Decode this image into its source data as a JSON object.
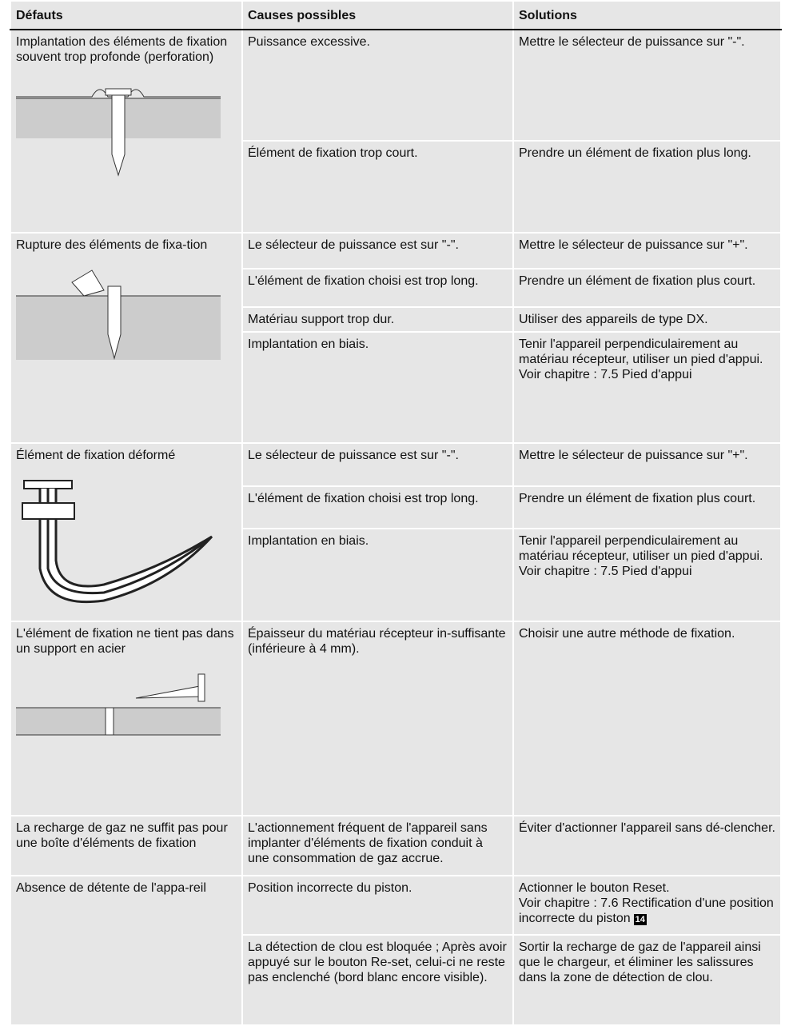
{
  "table": {
    "header": [
      "Défauts",
      "Causes possibles",
      "Solutions"
    ],
    "rows": [
      {
        "defect": "Implantation des éléments de fixation souvent trop profonde (perforation)",
        "items": [
          {
            "cause": "Puissance excessive.",
            "solution": [
              "Mettre le sélecteur de puissance sur \"-\"."
            ]
          },
          {
            "cause": "Élément de fixation trop court.",
            "solution": [
              "Prendre un élément de fixation plus long."
            ]
          }
        ]
      },
      {
        "defect": "Rupture des éléments de fixa-tion",
        "items": [
          {
            "cause": "Le sélecteur de puissance est sur \"-\".",
            "solution": [
              "Mettre le sélecteur de puissance sur \"+\"."
            ]
          },
          {
            "cause": "L'élément de fixation choisi est trop long.",
            "solution": [
              "Prendre un élément de fixation plus court."
            ]
          },
          {
            "cause": "Matériau support trop dur.",
            "solution": [
              "Utiliser des appareils de type DX."
            ]
          },
          {
            "cause": "Implantation en biais.",
            "solution": [
              "Tenir l'appareil perpendiculairement au matériau récepteur, utiliser un pied d'appui.",
              "Voir chapitre : 7.5 Pied d'appui"
            ]
          }
        ]
      },
      {
        "defect": "Élément de fixation déformé",
        "items": [
          {
            "cause": "Le sélecteur de puissance est sur \"-\".",
            "solution": [
              "Mettre le sélecteur de puissance sur \"+\"."
            ]
          },
          {
            "cause": "L'élément de fixation choisi est trop long.",
            "solution": [
              "Prendre un élément de fixation plus court."
            ]
          },
          {
            "cause": "Implantation en biais.",
            "solution": [
              "Tenir l'appareil perpendiculairement au matériau récepteur, utiliser un pied d'appui.",
              "Voir chapitre : 7.5 Pied d'appui"
            ]
          }
        ]
      },
      {
        "defect": "L'élément de fixation ne tient pas dans un support en acier",
        "items": [
          {
            "cause": "Épaisseur du matériau récepteur in-suffisante (inférieure à 4 mm).",
            "solution": [
              "Choisir une autre méthode de fixation."
            ]
          }
        ]
      },
      {
        "defect": "La recharge de gaz ne suffit pas pour une boîte d'éléments de fixation",
        "items": [
          {
            "cause": "L'actionnement fréquent de l'appareil sans implanter d'éléments de fixation conduit à une consommation de gaz accrue.",
            "solution": [
              "Éviter d'actionner l'appareil sans dé-clencher."
            ]
          }
        ]
      },
      {
        "defect": "Absence de détente de l'appa-reil",
        "items": [
          {
            "cause": "Position incorrecte du piston.",
            "solution": [
              "Actionner le bouton Reset.",
              "Voir chapitre : 7.6 Rectification d'une position incorrecte du piston"
            ],
            "badge": "14"
          },
          {
            "cause": "La détection de clou est bloquée ; Après avoir appuyé sur le bouton Re-set, celui-ci ne reste pas enclenché (bord blanc encore visible).",
            "solution": [
              "Sortir la recharge de gaz de l'appareil ainsi que le chargeur, et éliminer les salissures dans la zone de détection de clou."
            ]
          }
        ]
      }
    ]
  }
}
